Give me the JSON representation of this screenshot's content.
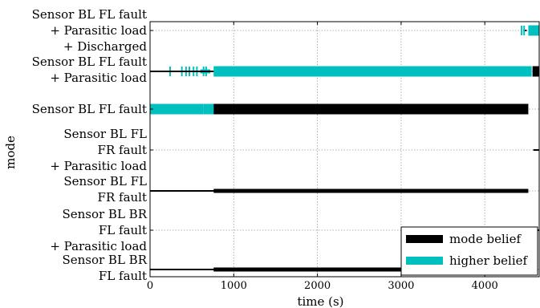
{
  "chart_data": {
    "type": "line",
    "title": "",
    "xlabel": "time (s)",
    "ylabel": "mode",
    "xlim": [
      0,
      4650
    ],
    "xticks": [
      0,
      1000,
      2000,
      3000,
      4000
    ],
    "grid": true,
    "legend_position": "bottom-right",
    "modes": [
      {
        "lines": [
          "Sensor BL FL fault",
          "+ Parasitic load",
          "+ Discharged"
        ]
      },
      {
        "lines": [
          "Sensor BL FL fault",
          "+ Parasitic load"
        ]
      },
      {
        "lines": [
          "Sensor BL FL fault"
        ]
      },
      {
        "lines": [
          "Sensor BL FL",
          "FR fault",
          "+ Parasitic load"
        ]
      },
      {
        "lines": [
          "Sensor BL FL",
          "FR fault"
        ]
      },
      {
        "lines": [
          "Sensor BL BR",
          "FL fault",
          "+ Parasitic load"
        ]
      },
      {
        "lines": [
          "Sensor BL BR",
          "FL fault"
        ]
      }
    ],
    "series": [
      {
        "name": "mode belief",
        "color": "#000000",
        "segments": [
          {
            "mode": 0,
            "x": [
              4480,
              4500
            ],
            "weight": "thin"
          },
          {
            "mode": 1,
            "x": [
              0,
              760
            ],
            "weight": "thin"
          },
          {
            "mode": 1,
            "x": [
              4570,
              4650
            ],
            "weight": "thick"
          },
          {
            "mode": 2,
            "x": [
              760,
              4520
            ],
            "weight": "thick"
          },
          {
            "mode": 3,
            "x": [
              4580,
              4650
            ],
            "weight": "thin"
          },
          {
            "mode": 4,
            "x": [
              0,
              4520
            ],
            "weight": "thin"
          },
          {
            "mode": 4,
            "x": [
              760,
              4520
            ],
            "weight": "medium"
          },
          {
            "mode": 5,
            "x": [
              4610,
              4650
            ],
            "weight": "thin"
          },
          {
            "mode": 6,
            "x": [
              0,
              4520
            ],
            "weight": "thin"
          },
          {
            "mode": 6,
            "x": [
              760,
              4520
            ],
            "weight": "medium"
          }
        ]
      },
      {
        "name": "higher belief",
        "color": "#00bfbf",
        "segments": [
          {
            "mode": 0,
            "x": [
              4520,
              4650
            ],
            "weight": "thick"
          },
          {
            "mode": 0,
            "x": [
              4460,
              4500
            ],
            "weight": "thin"
          },
          {
            "mode": 1,
            "x": [
              760,
              4560
            ],
            "weight": "thick"
          },
          {
            "mode": 1,
            "x": [
              600,
              720
            ],
            "weight": "medium"
          },
          {
            "mode": 2,
            "x": [
              0,
              640
            ],
            "weight": "thick"
          },
          {
            "mode": 2,
            "x": [
              640,
              760
            ],
            "weight": "thick"
          }
        ],
        "spikes": [
          {
            "mode": 1,
            "x": [
              240,
              380,
              430,
              470,
              520,
              560,
              640,
              670
            ]
          },
          {
            "mode": 0,
            "x": [
              4440,
              4470
            ]
          }
        ]
      }
    ]
  }
}
